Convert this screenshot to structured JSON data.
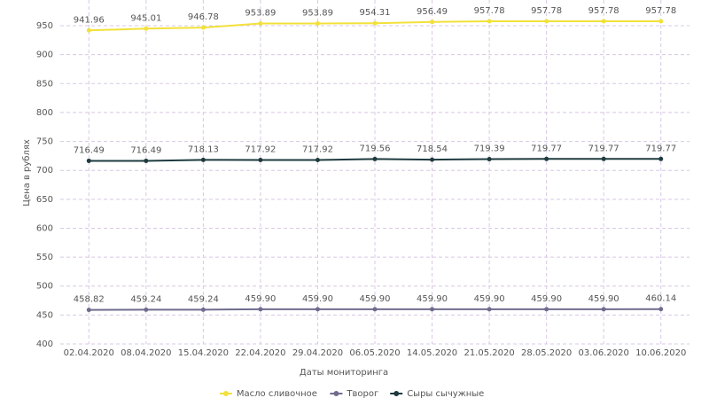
{
  "chart_data": {
    "type": "line",
    "x_label": "Даты мониторинга",
    "y_label": "Цена в рублях",
    "categories": [
      "02.04.2020",
      "08.04.2020",
      "15.04.2020",
      "22.04.2020",
      "29.04.2020",
      "06.05.2020",
      "14.05.2020",
      "21.05.2020",
      "28.05.2020",
      "03.06.2020",
      "10.06.2020"
    ],
    "series": [
      {
        "name": "Масло сливочное",
        "color": "#f2e13a",
        "values": [
          941.96,
          945.01,
          946.78,
          953.89,
          953.89,
          954.31,
          956.49,
          957.78,
          957.78,
          957.78,
          957.78
        ],
        "value_labels": [
          "941.96",
          "945.01",
          "946.78",
          "953.89",
          "953.89",
          "954.31",
          "956.49",
          "957.78",
          "957.78",
          "957.78",
          "957.78"
        ]
      },
      {
        "name": "Творог",
        "color": "#6f6c8e",
        "values": [
          458.82,
          459.24,
          459.24,
          459.9,
          459.9,
          459.9,
          459.9,
          459.9,
          459.9,
          459.9,
          460.14
        ],
        "value_labels": [
          "458.82",
          "459.24",
          "459.24",
          "459.90",
          "459.90",
          "459.90",
          "459.90",
          "459.90",
          "459.90",
          "459.90",
          "460.14"
        ]
      },
      {
        "name": "Сыры сычужные",
        "color": "#1e3b3f",
        "values": [
          716.49,
          716.49,
          718.13,
          717.92,
          717.92,
          719.56,
          718.54,
          719.39,
          719.77,
          719.77,
          719.77
        ],
        "value_labels": [
          "716.49",
          "716.49",
          "718.13",
          "717.92",
          "717.92",
          "719.56",
          "718.54",
          "719.39",
          "719.77",
          "719.77",
          "719.77"
        ]
      }
    ],
    "ylim": [
      400,
      1000
    ],
    "yticks": [
      400,
      450,
      500,
      550,
      600,
      650,
      700,
      750,
      800,
      850,
      900,
      950
    ],
    "grid": true
  }
}
